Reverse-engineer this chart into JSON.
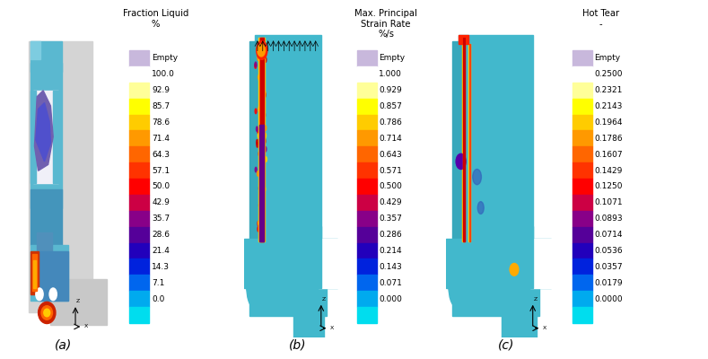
{
  "panels": [
    {
      "label": "(a)",
      "title": "Fraction Liquid\n%",
      "tick_labels": [
        "Empty",
        "100.0",
        "92.9",
        "85.7",
        "78.6",
        "71.4",
        "64.3",
        "57.1",
        "50.0",
        "42.9",
        "35.7",
        "28.6",
        "21.4",
        "14.3",
        "7.1",
        "0.0"
      ],
      "empty_color": "#c8b8dc"
    },
    {
      "label": "(b)",
      "title": "Max. Principal\nStrain Rate\n%/s",
      "tick_labels": [
        "Empty",
        "1.000",
        "0.929",
        "0.857",
        "0.786",
        "0.714",
        "0.643",
        "0.571",
        "0.500",
        "0.429",
        "0.357",
        "0.286",
        "0.214",
        "0.143",
        "0.071",
        "0.000"
      ],
      "empty_color": "#c8b8dc"
    },
    {
      "label": "(c)",
      "title": "Hot Tear\n-",
      "tick_labels": [
        "Empty",
        "0.2500",
        "0.2321",
        "0.2143",
        "0.1964",
        "0.1786",
        "0.1607",
        "0.1429",
        "0.1250",
        "0.1071",
        "0.0893",
        "0.0714",
        "0.0536",
        "0.0357",
        "0.0179",
        "0.0000"
      ],
      "empty_color": "#c8b8dc"
    }
  ],
  "cb_colors": [
    "#ffffff",
    "#ffff99",
    "#ffff00",
    "#ffcc00",
    "#ff9900",
    "#ff6600",
    "#ff3300",
    "#ff0000",
    "#cc0044",
    "#880088",
    "#550099",
    "#2200bb",
    "#0022dd",
    "#0066ee",
    "#00aaee",
    "#00ddee"
  ],
  "bg_color": "#ffffff",
  "label_fontsize": 10,
  "title_fontsize": 7.2,
  "tick_fontsize": 6.5
}
